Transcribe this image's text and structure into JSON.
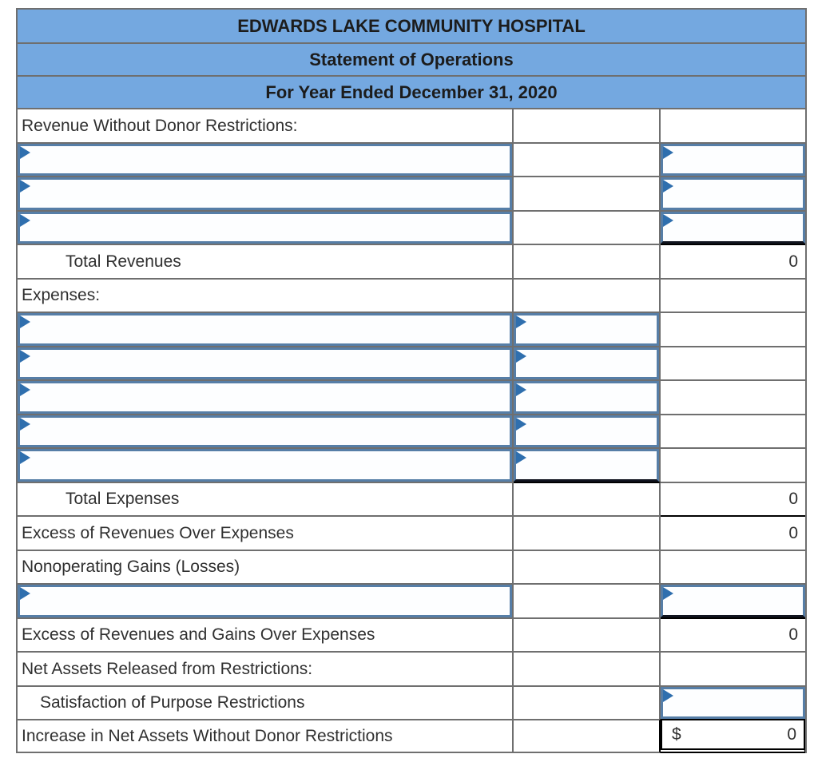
{
  "title": {
    "company": "EDWARDS LAKE COMMUNITY HOSPITAL",
    "statement": "Statement of Operations",
    "period": "For Year Ended December 31, 2020"
  },
  "labels": {
    "revenue_section": "Revenue Without Donor Restrictions:",
    "total_revenues": "Total Revenues",
    "expenses_section": "Expenses:",
    "total_expenses": "Total Expenses",
    "excess_revenues_over_expenses": "Excess of Revenues Over Expenses",
    "nonoperating_gains": "Nonoperating Gains (Losses)",
    "excess_revenues_gains_over_expenses": "Excess of Revenues and Gains Over Expenses",
    "net_assets_released": "Net Assets Released from Restrictions:",
    "satisfaction_purpose": "Satisfaction of Purpose Restrictions",
    "increase_net_assets": "Increase in Net Assets Without Donor Restrictions"
  },
  "values": {
    "total_revenues": "0",
    "total_expenses": "0",
    "excess_revenues_over_expenses": "0",
    "excess_revenues_gains_over_expenses": "0",
    "increase_currency": "$",
    "increase_net_assets": "0"
  },
  "colors": {
    "header_fill": "#74a8e0",
    "grid_line": "#6f6f6f",
    "input_border": "#567ea7",
    "dropdown_marker": "#2f6fae",
    "sum_rule": "#000000"
  }
}
